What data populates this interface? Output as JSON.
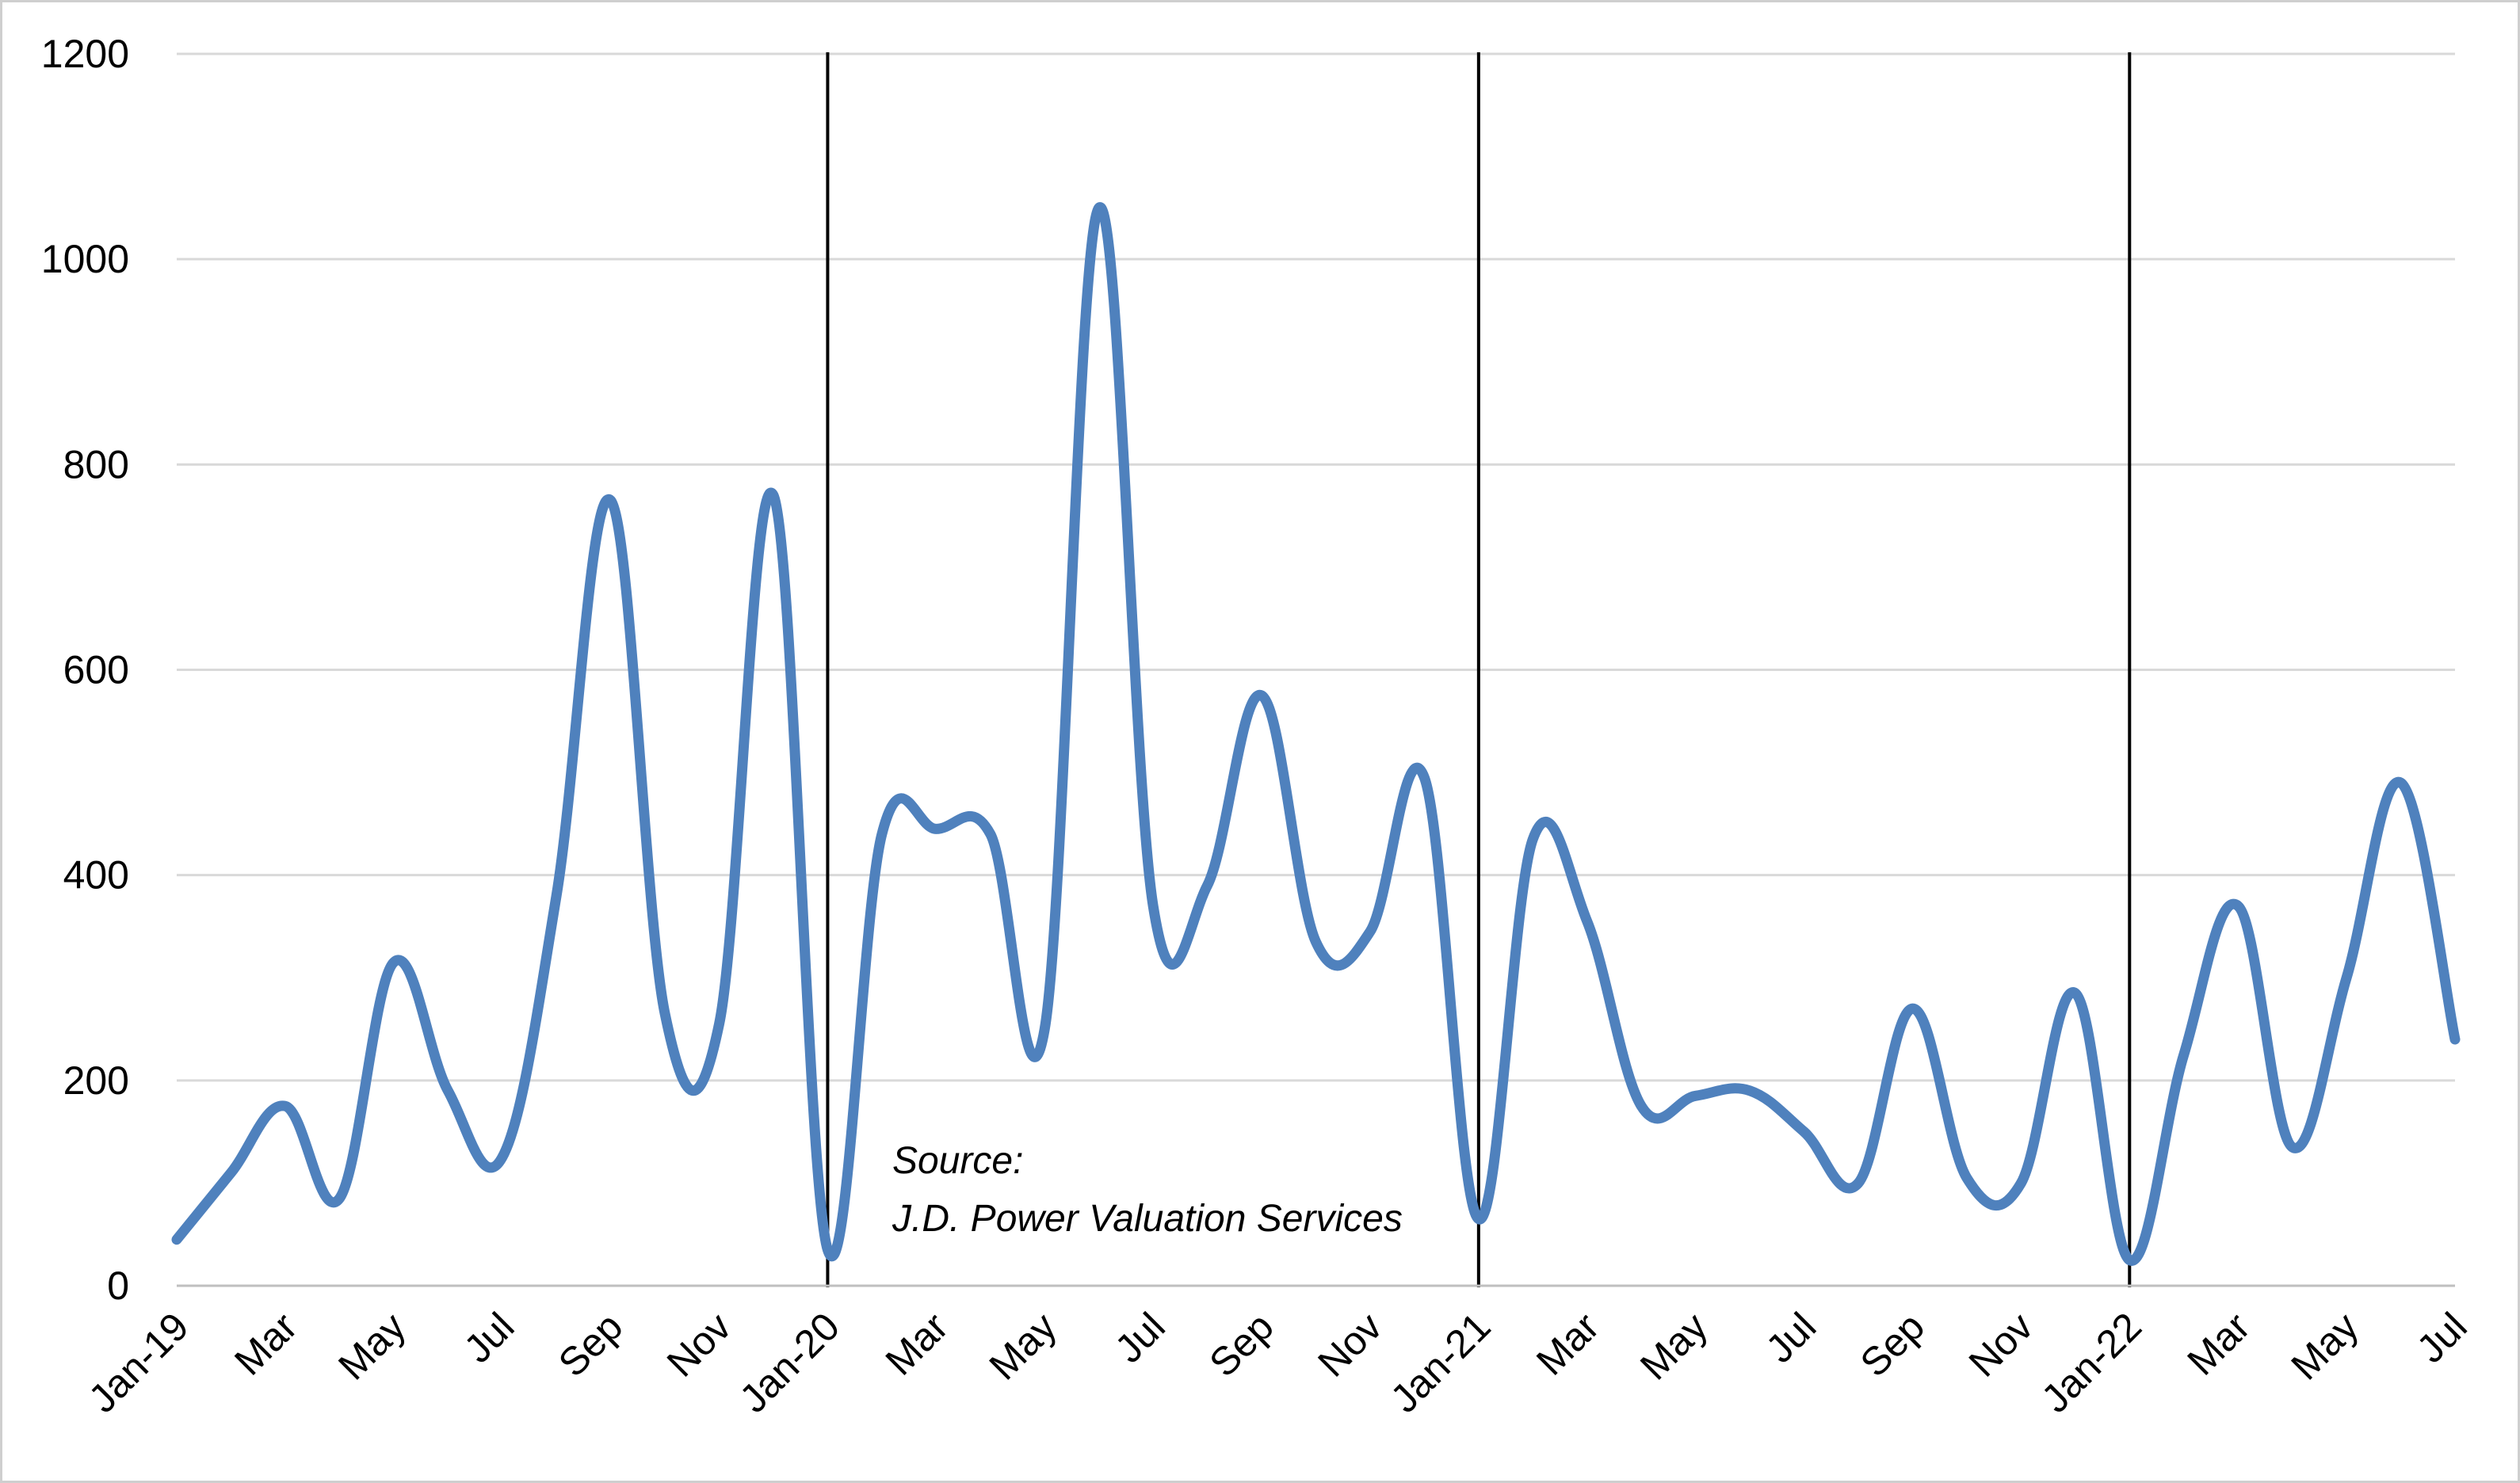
{
  "chart_data": {
    "type": "line",
    "title": "",
    "xlabel": "",
    "ylabel": "",
    "ylim": [
      0,
      1200
    ],
    "yticks": [
      0,
      200,
      400,
      600,
      800,
      1000,
      1200
    ],
    "grid": true,
    "legend": "none",
    "categories": [
      "Jan-19",
      "Feb-19",
      "Mar-19",
      "Apr-19",
      "May-19",
      "Jun-19",
      "Jul-19",
      "Aug-19",
      "Sep-19",
      "Oct-19",
      "Nov-19",
      "Dec-19",
      "Jan-20",
      "Feb-20",
      "Mar-20",
      "Apr-20",
      "May-20",
      "Jun-20",
      "Jul-20",
      "Aug-20",
      "Sep-20",
      "Oct-20",
      "Nov-20",
      "Dec-20",
      "Jan-21",
      "Feb-21",
      "Mar-21",
      "Apr-21",
      "May-21",
      "Jun-21",
      "Jul-21",
      "Aug-21",
      "Sep-21",
      "Oct-21",
      "Nov-21",
      "Dec-21",
      "Jan-22",
      "Feb-22",
      "Mar-22",
      "Apr-22",
      "May-22",
      "Jun-22",
      "Jul-22"
    ],
    "x_tick_labels": [
      "Jan-19",
      "Mar",
      "May",
      "Jul",
      "Sep",
      "Nov",
      "Jan-20",
      "Mar",
      "May",
      "Jul",
      "Sep",
      "Nov",
      "Jan-21",
      "Mar",
      "May",
      "Jul",
      "Sep",
      "Nov",
      "Jan-22",
      "Mar",
      "May",
      "Jul"
    ],
    "series": [
      {
        "values": [
          45,
          110,
          175,
          85,
          315,
          190,
          125,
          380,
          765,
          265,
          255,
          770,
          35,
          440,
          445,
          440,
          250,
          1050,
          370,
          390,
          575,
          335,
          345,
          495,
          65,
          435,
          355,
          175,
          185,
          190,
          150,
          100,
          270,
          105,
          100,
          285,
          25,
          225,
          370,
          135,
          300,
          490,
          240
        ],
        "color": "#4f81bd"
      }
    ],
    "year_dividers": [
      "Jan-20",
      "Jan-21",
      "Jan-22"
    ],
    "annotation": {
      "line1": "Source:",
      "line2": "J.D. Power Valuation Services"
    },
    "colors": {
      "line": "#4f81bd",
      "grid": "#d9d9d9",
      "divider": "#000000",
      "axis": "#bfbfbf",
      "text": "#000000"
    }
  }
}
